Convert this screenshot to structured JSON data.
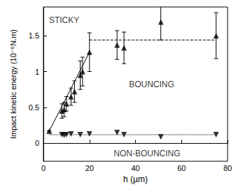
{
  "chart_data": {
    "type": "scatter",
    "x_label": "h (µm)",
    "y_label": "Impact kinetic energy (10⁻⁶N.m)",
    "xlim": [
      0,
      80
    ],
    "xticks": [
      0,
      20,
      40,
      60,
      80
    ],
    "ylim": [
      -0.25,
      1.9
    ],
    "yticks": [
      0,
      0.5,
      1,
      1.5
    ],
    "grid": false,
    "series": [
      {
        "type": "scatter",
        "marker": "triangle-up",
        "color": "#000000",
        "x": [
          2.5,
          8,
          9,
          10,
          12,
          13.5,
          16,
          17,
          20,
          32,
          35,
          51,
          75
        ],
        "values": [
          0.17,
          0.45,
          0.47,
          0.55,
          0.65,
          0.72,
          0.95,
          1.0,
          1.27,
          1.37,
          1.33,
          1.69,
          1.5
        ],
        "errors": [
          0,
          0.1,
          0.1,
          0.1,
          0.12,
          0.15,
          0.2,
          0.2,
          0.27,
          0.2,
          0.22,
          0.25,
          0.32
        ]
      },
      {
        "type": "scatter",
        "marker": "triangle-down",
        "color": "#000000",
        "x": [
          8,
          9,
          10,
          12,
          16,
          20,
          32,
          35,
          51,
          75
        ],
        "values": [
          0.12,
          0.11,
          0.12,
          0.13,
          0.12,
          0.13,
          0.15,
          0.12,
          0.09,
          0.12
        ]
      },
      {
        "type": "line",
        "line_style": "solid",
        "color": "#000000",
        "x": [
          2.5,
          20
        ],
        "values": [
          0.17,
          1.27
        ]
      },
      {
        "type": "line",
        "line_style": "dashed",
        "color": "#000000",
        "x": [
          20,
          75
        ],
        "values": [
          1.44,
          1.44
        ]
      },
      {
        "type": "line",
        "line_style": "dotted",
        "color": "#000000",
        "x": [
          2.5,
          75
        ],
        "values": [
          0.12,
          0.12
        ]
      }
    ],
    "annotations": [
      {
        "text": "STICKY",
        "x": 9,
        "y": 1.72
      },
      {
        "text": "BOUNCING",
        "x": 47,
        "y": 0.82
      },
      {
        "text": "NON-BOUNCING",
        "x": 45,
        "y": -0.14
      }
    ]
  }
}
